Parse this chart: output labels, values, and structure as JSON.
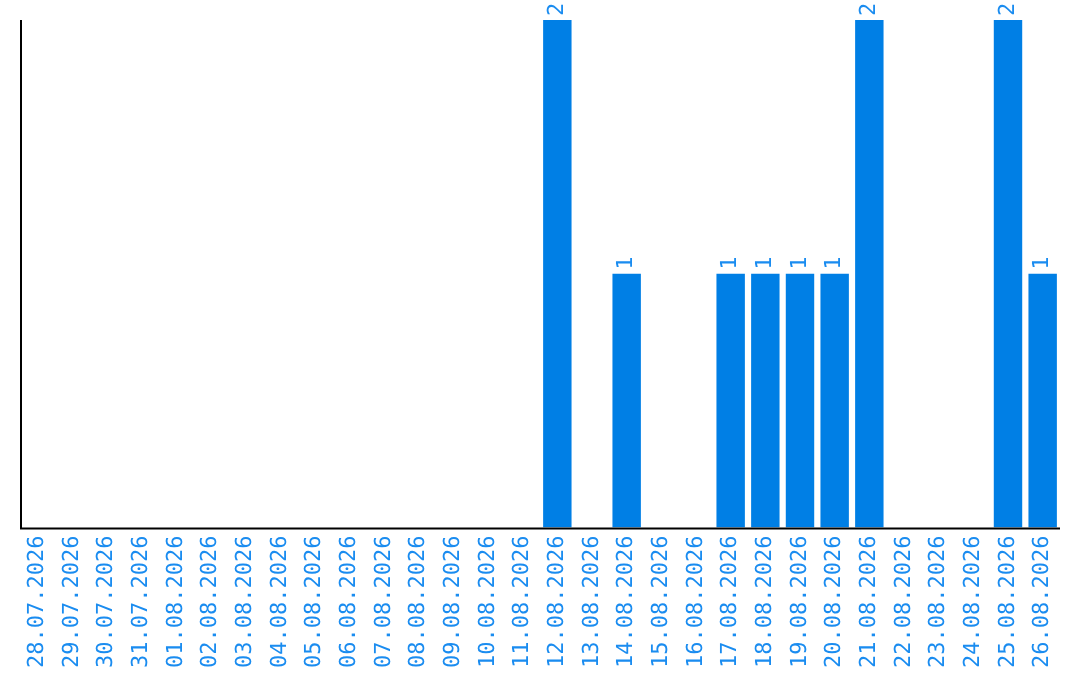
{
  "chart_data": {
    "type": "bar",
    "categories": [
      "28.07.2026",
      "29.07.2026",
      "30.07.2026",
      "31.07.2026",
      "01.08.2026",
      "02.08.2026",
      "03.08.2026",
      "04.08.2026",
      "05.08.2026",
      "06.08.2026",
      "07.08.2026",
      "08.08.2026",
      "09.08.2026",
      "10.08.2026",
      "11.08.2026",
      "12.08.2026",
      "13.08.2026",
      "14.08.2026",
      "15.08.2026",
      "16.08.2026",
      "17.08.2026",
      "18.08.2026",
      "19.08.2026",
      "20.08.2026",
      "21.08.2026",
      "22.08.2026",
      "23.08.2026",
      "24.08.2026",
      "25.08.2026",
      "26.08.2026"
    ],
    "values": [
      null,
      null,
      null,
      null,
      null,
      null,
      null,
      null,
      null,
      null,
      null,
      null,
      null,
      null,
      null,
      2,
      null,
      1,
      null,
      null,
      1,
      1,
      1,
      1,
      2,
      null,
      null,
      null,
      2,
      1
    ],
    "ylim": [
      0,
      2
    ],
    "value_labels": [
      null,
      null,
      null,
      null,
      null,
      null,
      null,
      null,
      null,
      null,
      null,
      null,
      null,
      null,
      null,
      "2",
      null,
      "1",
      null,
      null,
      "1",
      "1",
      "1",
      "1",
      "2",
      null,
      null,
      null,
      "2",
      "1"
    ],
    "color": "#007fe5",
    "tick_labels": "x",
    "grid": false,
    "legend": false
  }
}
